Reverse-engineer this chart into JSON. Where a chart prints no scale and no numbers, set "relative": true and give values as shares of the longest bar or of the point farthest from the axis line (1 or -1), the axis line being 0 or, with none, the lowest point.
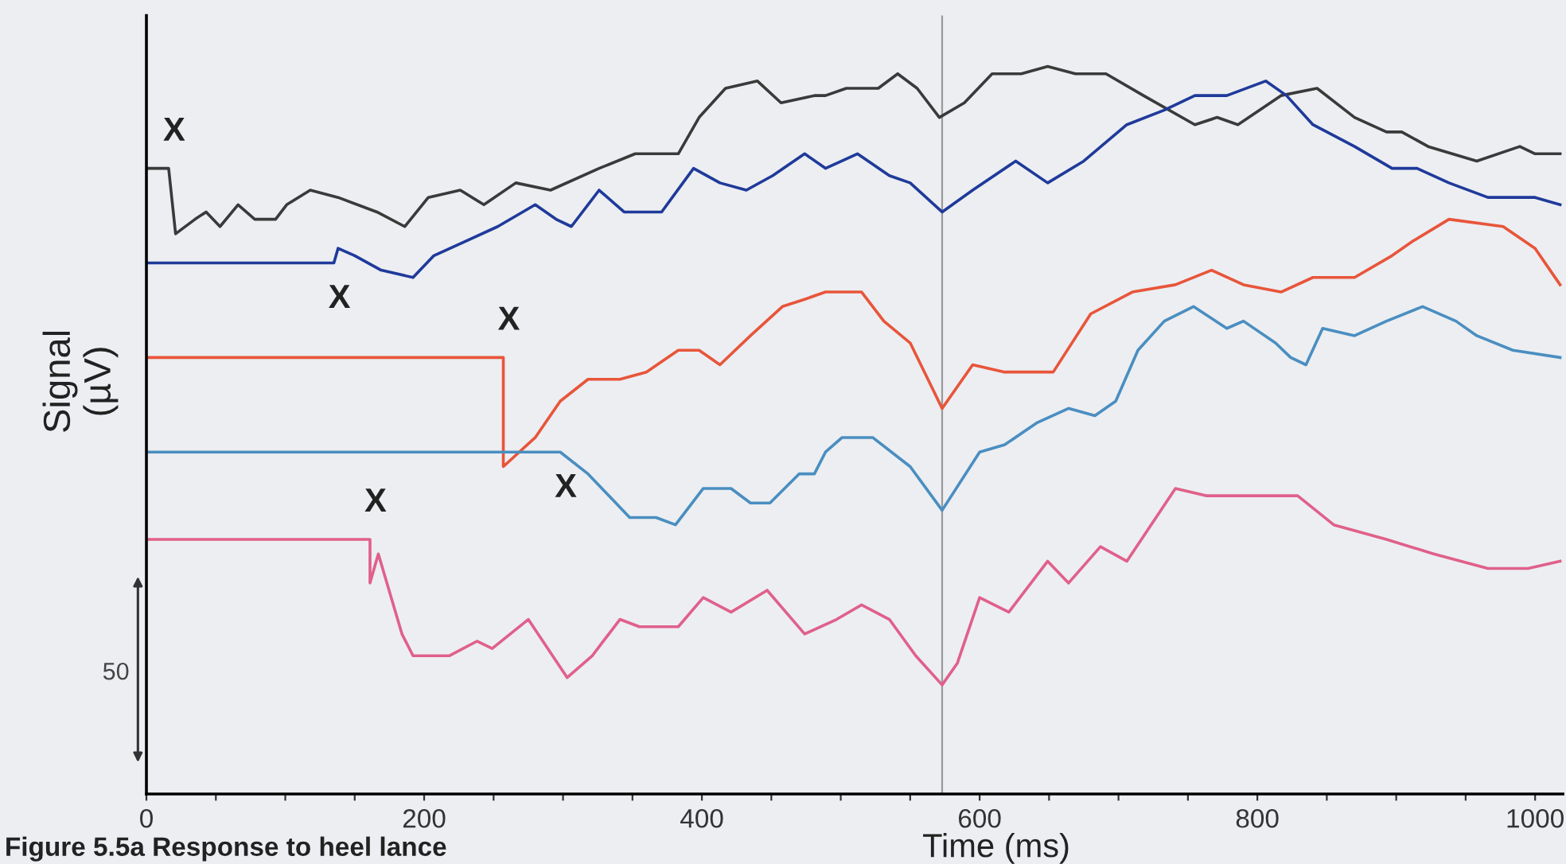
{
  "chart_data": {
    "type": "line",
    "relative": true,
    "xlabel": "Time (ms)",
    "ylabel": "Signal\n(µV)",
    "xlim": [
      0,
      1020
    ],
    "xticks": [
      0,
      {
        "value": 50,
        "label": null
      },
      {
        "value": 100,
        "label": null
      },
      {
        "value": 150,
        "label": null
      },
      200,
      {
        "value": 250,
        "label": null
      },
      {
        "value": 300,
        "label": null
      },
      {
        "value": 350,
        "label": null
      },
      400,
      {
        "value": 450,
        "label": null
      },
      {
        "value": 500,
        "label": null
      },
      {
        "value": 550,
        "label": null
      },
      600,
      {
        "value": 650,
        "label": null
      },
      {
        "value": 700,
        "label": null
      },
      {
        "value": 750,
        "label": null
      },
      800,
      {
        "value": 850,
        "label": null
      },
      {
        "value": 900,
        "label": null
      },
      {
        "value": 950,
        "label": null
      },
      1000
    ],
    "tick_labels": "x",
    "grid": false,
    "marker": "none",
    "line_style": "solid",
    "ref_lines": [
      {
        "axis": "x",
        "value": 573,
        "color": "#9a9a9a"
      }
    ],
    "annotations": [
      "X",
      "X",
      "X",
      "X",
      "X",
      "50",
      "Figure 5.5a Response to heel lance"
    ],
    "series": [
      {
        "color": "#3a3a3a",
        "x": [
          0,
          16,
          21,
          35,
          43,
          53,
          66,
          78,
          93,
          101,
          118,
          138,
          166,
          186,
          203,
          226,
          243,
          266,
          291,
          326,
          352,
          383,
          398,
          417,
          440,
          457,
          481,
          489,
          504,
          527,
          541,
          555,
          571,
          589,
          609,
          630,
          649,
          669,
          691,
          718,
          755,
          771,
          786,
          817,
          843,
          870,
          893,
          904,
          923,
          958,
          989,
          1000,
          1018
        ],
        "values": [
          0.86,
          0.86,
          0.77,
          0.79,
          0.8,
          0.78,
          0.81,
          0.79,
          0.79,
          0.81,
          0.83,
          0.82,
          0.8,
          0.78,
          0.82,
          0.83,
          0.81,
          0.84,
          0.83,
          0.86,
          0.88,
          0.88,
          0.93,
          0.97,
          0.98,
          0.95,
          0.96,
          0.96,
          0.97,
          0.97,
          0.99,
          0.97,
          0.93,
          0.95,
          0.99,
          0.99,
          1,
          0.99,
          0.99,
          0.96,
          0.92,
          0.93,
          0.92,
          0.96,
          0.97,
          0.93,
          0.91,
          0.91,
          0.89,
          0.87,
          0.89,
          0.88,
          0.88
        ]
      },
      {
        "color": "#1f3a9a",
        "x": [
          0,
          135,
          138,
          150,
          169,
          192,
          207,
          230,
          253,
          280,
          295,
          306,
          326,
          344,
          355,
          371,
          394,
          413,
          432,
          451,
          474,
          489,
          512,
          535,
          550,
          573,
          595,
          626,
          649,
          675,
          706,
          733,
          755,
          778,
          806,
          821,
          840,
          870,
          897,
          915,
          938,
          966,
          1000,
          1018
        ],
        "values": [
          0.73,
          0.73,
          0.75,
          0.74,
          0.72,
          0.71,
          0.74,
          0.76,
          0.78,
          0.81,
          0.79,
          0.78,
          0.83,
          0.8,
          0.8,
          0.8,
          0.86,
          0.84,
          0.83,
          0.85,
          0.88,
          0.86,
          0.88,
          0.85,
          0.84,
          0.8,
          0.83,
          0.87,
          0.84,
          0.87,
          0.92,
          0.94,
          0.96,
          0.96,
          0.98,
          0.96,
          0.92,
          0.89,
          0.86,
          0.86,
          0.84,
          0.82,
          0.82,
          0.81
        ]
      },
      {
        "color": "#e8553a",
        "x": [
          0,
          257,
          257,
          280,
          298,
          318,
          341,
          360,
          383,
          398,
          413,
          435,
          458,
          474,
          489,
          515,
          531,
          550,
          573,
          595,
          618,
          653,
          680,
          710,
          741,
          767,
          790,
          817,
          840,
          870,
          897,
          912,
          938,
          977,
          1000,
          1018
        ],
        "values": [
          0.6,
          0.6,
          0.45,
          0.49,
          0.54,
          0.57,
          0.57,
          0.58,
          0.61,
          0.61,
          0.59,
          0.63,
          0.67,
          0.68,
          0.69,
          0.69,
          0.65,
          0.62,
          0.53,
          0.59,
          0.58,
          0.58,
          0.66,
          0.69,
          0.7,
          0.72,
          0.7,
          0.69,
          0.71,
          0.71,
          0.74,
          0.76,
          0.79,
          0.78,
          0.75,
          0.7
        ]
      },
      {
        "color": "#4a8ec0",
        "x": [
          0,
          281,
          298,
          318,
          333,
          348,
          367,
          381,
          401,
          421,
          435,
          449,
          470,
          481,
          489,
          501,
          523,
          550,
          573,
          600,
          618,
          641,
          664,
          683,
          698,
          714,
          733,
          754,
          778,
          790,
          813,
          824,
          835,
          847,
          870,
          893,
          919,
          943,
          958,
          984,
          1018
        ],
        "values": [
          0.47,
          0.47,
          0.47,
          0.44,
          0.41,
          0.38,
          0.38,
          0.37,
          0.42,
          0.42,
          0.4,
          0.4,
          0.44,
          0.44,
          0.47,
          0.49,
          0.49,
          0.45,
          0.39,
          0.47,
          0.48,
          0.51,
          0.53,
          0.52,
          0.54,
          0.61,
          0.65,
          0.67,
          0.64,
          0.65,
          0.62,
          0.6,
          0.59,
          0.64,
          0.63,
          0.65,
          0.67,
          0.65,
          0.63,
          0.61,
          0.6
        ]
      },
      {
        "color": "#e0608a",
        "x": [
          0,
          161,
          161,
          167,
          184,
          192,
          207,
          218,
          238,
          249,
          275,
          303,
          321,
          341,
          355,
          383,
          401,
          421,
          447,
          474,
          497,
          515,
          535,
          554,
          573,
          584,
          600,
          621,
          649,
          664,
          687,
          706,
          741,
          763,
          794,
          809,
          829,
          855,
          893,
          927,
          966,
          995,
          1018
        ],
        "values": [
          0.35,
          0.35,
          0.29,
          0.33,
          0.22,
          0.19,
          0.19,
          0.19,
          0.21,
          0.2,
          0.24,
          0.16,
          0.19,
          0.24,
          0.23,
          0.23,
          0.27,
          0.25,
          0.28,
          0.22,
          0.24,
          0.26,
          0.24,
          0.19,
          0.15,
          0.18,
          0.27,
          0.25,
          0.32,
          0.29,
          0.34,
          0.32,
          0.42,
          0.41,
          0.41,
          0.41,
          0.41,
          0.37,
          0.35,
          0.33,
          0.31,
          0.31,
          0.32
        ]
      }
    ]
  }
}
